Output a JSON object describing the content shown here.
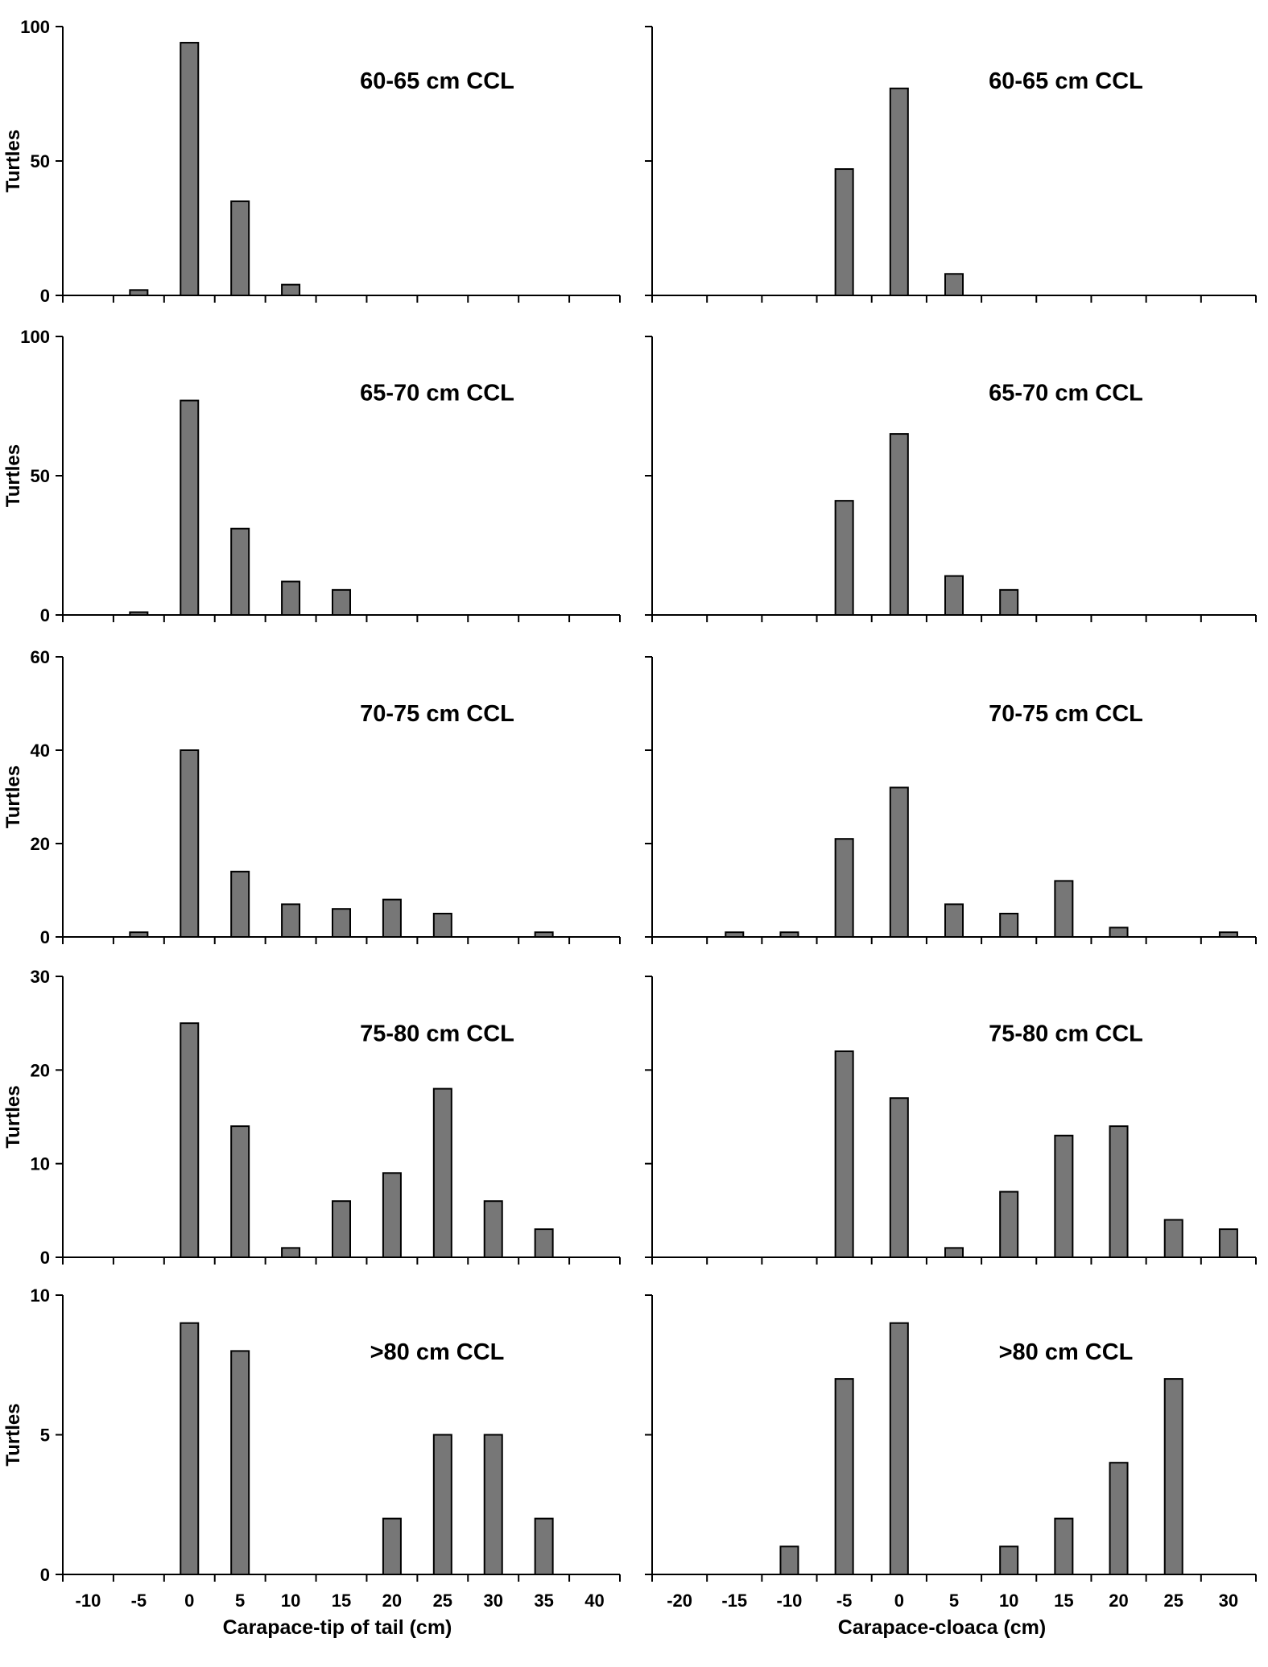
{
  "colors": {
    "bar_fill": "#777777",
    "bar_stroke": "#000000",
    "axis": "#000000",
    "background": "#ffffff"
  },
  "ylabel": "Turtles",
  "xlabel_left": "Carapace-tip of tail (cm)",
  "xlabel_right": "Carapace-cloaca (cm)",
  "chart_data": [
    {
      "type": "bar",
      "title": "60-65 cm CCL",
      "ylabel": "Turtles",
      "xlabel": "",
      "x": [
        -5,
        0,
        5,
        10
      ],
      "values": [
        2,
        94,
        35,
        4
      ],
      "xlim": [
        -12.5,
        42.5
      ],
      "ylim": [
        0,
        100
      ],
      "yticks": [
        0,
        50,
        100
      ],
      "xticks": [
        -10,
        -5,
        0,
        5,
        10,
        15,
        20,
        25,
        30,
        35,
        40
      ],
      "show_xtick_labels": false
    },
    {
      "type": "bar",
      "title": "60-65 cm CCL",
      "ylabel": "",
      "xlabel": "",
      "x": [
        -5,
        0,
        5
      ],
      "values": [
        47,
        77,
        8
      ],
      "xlim": [
        -22.5,
        32.5
      ],
      "ylim": [
        0,
        100
      ],
      "yticks": [
        0,
        50,
        100
      ],
      "xticks": [
        -20,
        -15,
        -10,
        -5,
        0,
        5,
        10,
        15,
        20,
        25,
        30
      ],
      "show_xtick_labels": false,
      "show_ytick_labels": false
    },
    {
      "type": "bar",
      "title": "65-70 cm CCL",
      "ylabel": "Turtles",
      "xlabel": "",
      "x": [
        -5,
        0,
        5,
        10,
        15
      ],
      "values": [
        1,
        77,
        31,
        12,
        9
      ],
      "xlim": [
        -12.5,
        42.5
      ],
      "ylim": [
        0,
        100
      ],
      "yticks": [
        0,
        50,
        100
      ],
      "xticks": [
        -10,
        -5,
        0,
        5,
        10,
        15,
        20,
        25,
        30,
        35,
        40
      ],
      "show_xtick_labels": false
    },
    {
      "type": "bar",
      "title": "65-70 cm CCL",
      "ylabel": "",
      "xlabel": "",
      "x": [
        -5,
        0,
        5,
        10
      ],
      "values": [
        41,
        65,
        14,
        9
      ],
      "xlim": [
        -22.5,
        32.5
      ],
      "ylim": [
        0,
        100
      ],
      "yticks": [
        0,
        50,
        100
      ],
      "xticks": [
        -20,
        -15,
        -10,
        -5,
        0,
        5,
        10,
        15,
        20,
        25,
        30
      ],
      "show_xtick_labels": false,
      "show_ytick_labels": false
    },
    {
      "type": "bar",
      "title": "70-75 cm CCL",
      "ylabel": "Turtles",
      "xlabel": "",
      "x": [
        -5,
        0,
        5,
        10,
        15,
        20,
        25,
        35
      ],
      "values": [
        1,
        40,
        14,
        7,
        6,
        8,
        5,
        1
      ],
      "xlim": [
        -12.5,
        42.5
      ],
      "ylim": [
        0,
        60
      ],
      "yticks": [
        0,
        20,
        40,
        60
      ],
      "xticks": [
        -10,
        -5,
        0,
        5,
        10,
        15,
        20,
        25,
        30,
        35,
        40
      ],
      "show_xtick_labels": false
    },
    {
      "type": "bar",
      "title": "70-75 cm CCL",
      "ylabel": "",
      "xlabel": "",
      "x": [
        -15,
        -10,
        -5,
        0,
        5,
        10,
        15,
        20,
        30
      ],
      "values": [
        1,
        1,
        21,
        32,
        7,
        5,
        12,
        2,
        1
      ],
      "xlim": [
        -22.5,
        32.5
      ],
      "ylim": [
        0,
        60
      ],
      "yticks": [
        0,
        20,
        40,
        60
      ],
      "xticks": [
        -20,
        -15,
        -10,
        -5,
        0,
        5,
        10,
        15,
        20,
        25,
        30
      ],
      "show_xtick_labels": false,
      "show_ytick_labels": false
    },
    {
      "type": "bar",
      "title": "75-80 cm CCL",
      "ylabel": "Turtles",
      "xlabel": "",
      "x": [
        0,
        5,
        10,
        15,
        20,
        25,
        30,
        35
      ],
      "values": [
        25,
        14,
        1,
        6,
        9,
        18,
        6,
        3
      ],
      "xlim": [
        -12.5,
        42.5
      ],
      "ylim": [
        0,
        30
      ],
      "yticks": [
        0,
        10,
        20,
        30
      ],
      "xticks": [
        -10,
        -5,
        0,
        5,
        10,
        15,
        20,
        25,
        30,
        35,
        40
      ],
      "show_xtick_labels": false
    },
    {
      "type": "bar",
      "title": "75-80 cm CCL",
      "ylabel": "",
      "xlabel": "",
      "x": [
        -5,
        0,
        5,
        10,
        15,
        20,
        25,
        30
      ],
      "values": [
        22,
        17,
        1,
        7,
        13,
        14,
        4,
        3
      ],
      "xlim": [
        -22.5,
        32.5
      ],
      "ylim": [
        0,
        30
      ],
      "yticks": [
        0,
        10,
        20,
        30
      ],
      "xticks": [
        -20,
        -15,
        -10,
        -5,
        0,
        5,
        10,
        15,
        20,
        25,
        30
      ],
      "show_xtick_labels": false,
      "show_ytick_labels": false
    },
    {
      "type": "bar",
      "title": ">80 cm CCL",
      "ylabel": "Turtles",
      "xlabel": "Carapace-tip of tail (cm)",
      "x": [
        0,
        5,
        20,
        25,
        30,
        35
      ],
      "values": [
        9,
        8,
        2,
        5,
        5,
        2
      ],
      "xlim": [
        -12.5,
        42.5
      ],
      "ylim": [
        0,
        10
      ],
      "yticks": [
        0,
        5,
        10
      ],
      "xticks": [
        -10,
        -5,
        0,
        5,
        10,
        15,
        20,
        25,
        30,
        35,
        40
      ],
      "show_xtick_labels": true
    },
    {
      "type": "bar",
      "title": ">80 cm CCL",
      "ylabel": "",
      "xlabel": "Carapace-cloaca (cm)",
      "x": [
        -10,
        -5,
        0,
        10,
        15,
        20,
        25
      ],
      "values": [
        1,
        7,
        9,
        1,
        2,
        4,
        7
      ],
      "xlim": [
        -22.5,
        32.5
      ],
      "ylim": [
        0,
        10
      ],
      "yticks": [
        0,
        5,
        10
      ],
      "xticks": [
        -20,
        -15,
        -10,
        -5,
        0,
        5,
        10,
        15,
        20,
        25,
        30
      ],
      "show_xtick_labels": true,
      "show_ytick_labels": false
    }
  ]
}
